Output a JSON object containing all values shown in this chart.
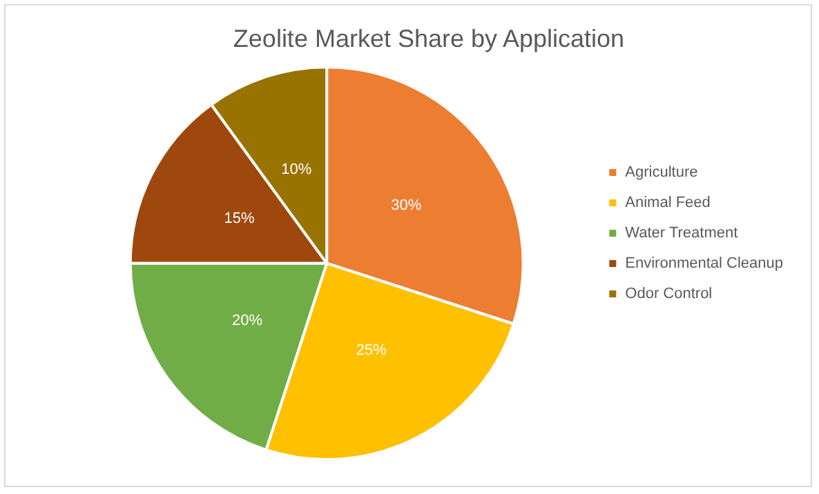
{
  "chart_data": {
    "type": "pie",
    "title": "Zeolite Market Share by Application",
    "categories": [
      "Agriculture",
      "Animal Feed",
      "Water Treatment",
      "Environmental Cleanup",
      "Odor Control"
    ],
    "values": [
      30,
      25,
      20,
      15,
      10
    ],
    "colors": [
      "#ed7d31",
      "#ffc000",
      "#70ad47",
      "#9e480e",
      "#997300"
    ],
    "value_labels": [
      "30%",
      "25%",
      "20%",
      "15%",
      "10%"
    ],
    "legend": "right"
  }
}
